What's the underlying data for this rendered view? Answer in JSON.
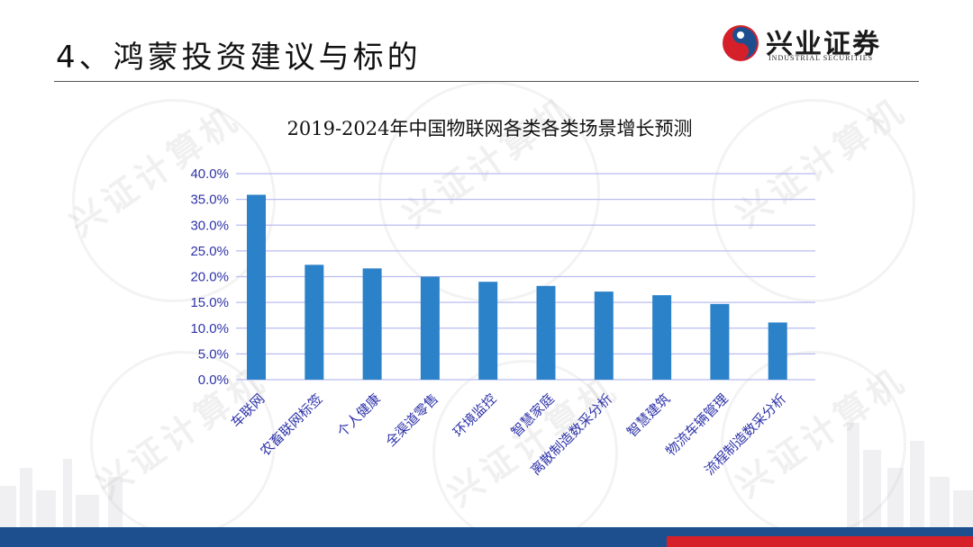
{
  "header": {
    "title": "4、鸿蒙投资建议与标的",
    "logo_text": "兴业证券",
    "logo_subtext": "INDUSTRIAL SECURITIES"
  },
  "watermark_text": "兴证计算机",
  "colors": {
    "bar": "#2c82c9",
    "grid": "#b8bdf0",
    "tick": "#2e33a8",
    "bottom_blue": "#1d4f8f",
    "bottom_red": "#d5202a"
  },
  "chart_data": {
    "type": "bar",
    "title": "2019-2024年中国物联网各类各类场景增长预测",
    "categories": [
      "车联网",
      "农畜联网标签",
      "个人健康",
      "全渠道零售",
      "环境监控",
      "智慧家庭",
      "离散制造数采分析",
      "智慧建筑",
      "物流车辆管理",
      "流程制造数采分析"
    ],
    "values": [
      35.9,
      22.3,
      21.6,
      20.0,
      19.0,
      18.2,
      17.1,
      16.4,
      14.7,
      11.1
    ],
    "ylim": [
      0,
      40
    ],
    "yticks": [
      0,
      5,
      10,
      15,
      20,
      25,
      30,
      35,
      40
    ],
    "ytick_labels": [
      "0.0%",
      "5.0%",
      "10.0%",
      "15.0%",
      "20.0%",
      "25.0%",
      "30.0%",
      "35.0%",
      "40.0%"
    ],
    "xlabel": "",
    "ylabel": "",
    "grid": true
  }
}
